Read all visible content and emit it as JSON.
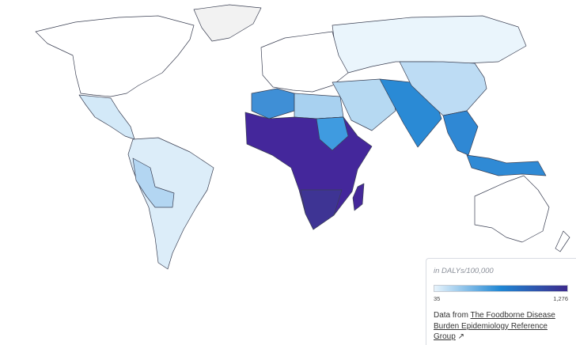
{
  "legend": {
    "unit": "in DALYs/100,000",
    "min": 35,
    "max": {
      "value": 1276,
      "label": "1,276"
    },
    "colors": [
      "#e8f4fc",
      "#1f86d3",
      "#3c2a8c"
    ]
  },
  "source": {
    "prefix": "Data from",
    "link": "The Foodborne Disease Burden Epidemiology Reference Group",
    "icon": "↗"
  }
}
